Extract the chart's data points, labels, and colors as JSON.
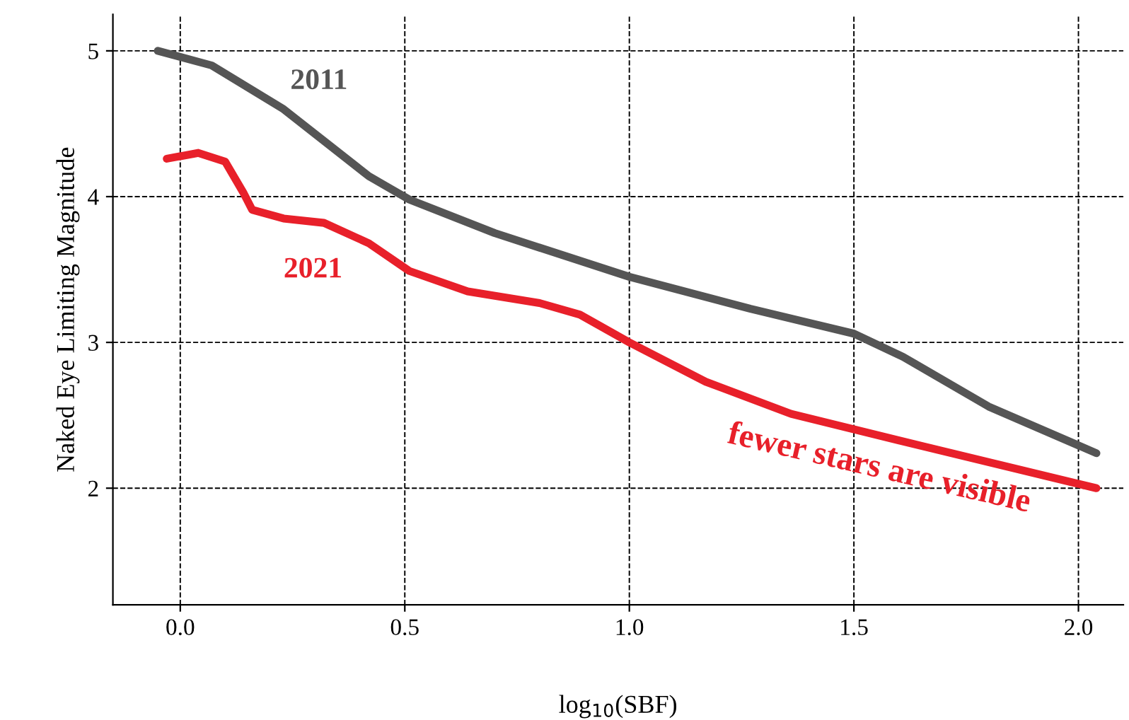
{
  "chart_data": {
    "type": "line",
    "xlabel": "log$_{10}$(SBF)",
    "ylabel": "Naked Eye Limiting Magnitude",
    "xlim": [
      -0.15,
      2.1
    ],
    "xticks": [
      {
        "value": 0,
        "label": "0.0"
      },
      0.5,
      {
        "value": 1,
        "label": "1.0"
      },
      1.5,
      {
        "value": 2,
        "label": "2.0"
      }
    ],
    "ylim": [
      1.2,
      5.25
    ],
    "yticks": [
      2,
      3,
      4,
      5
    ],
    "grid": true,
    "marker": "none",
    "line_style": "solid",
    "series": [
      {
        "name": "2011",
        "color": "#555555",
        "x": [
          -0.05,
          0.07,
          0.23,
          0.42,
          0.51,
          0.7,
          1.0,
          1.27,
          1.5,
          1.61,
          1.8,
          2.04
        ],
        "values": [
          5.0,
          4.9,
          4.6,
          4.14,
          3.98,
          3.75,
          3.45,
          3.23,
          3.06,
          2.9,
          2.56,
          2.24
        ]
      },
      {
        "name": "2021",
        "color": "#e8202a",
        "x": [
          -0.03,
          0.04,
          0.1,
          0.14,
          0.16,
          0.23,
          0.32,
          0.42,
          0.51,
          0.64,
          0.8,
          0.89,
          1.0,
          1.17,
          1.36,
          1.65,
          2.04
        ],
        "values": [
          4.26,
          4.3,
          4.24,
          4.03,
          3.91,
          3.85,
          3.82,
          3.68,
          3.49,
          3.35,
          3.27,
          3.19,
          3.0,
          2.73,
          2.51,
          2.29,
          2.0
        ]
      }
    ],
    "annotations": [
      {
        "text": "fewer stars are visible",
        "x": 1.65,
        "y": 2.29
      }
    ]
  }
}
